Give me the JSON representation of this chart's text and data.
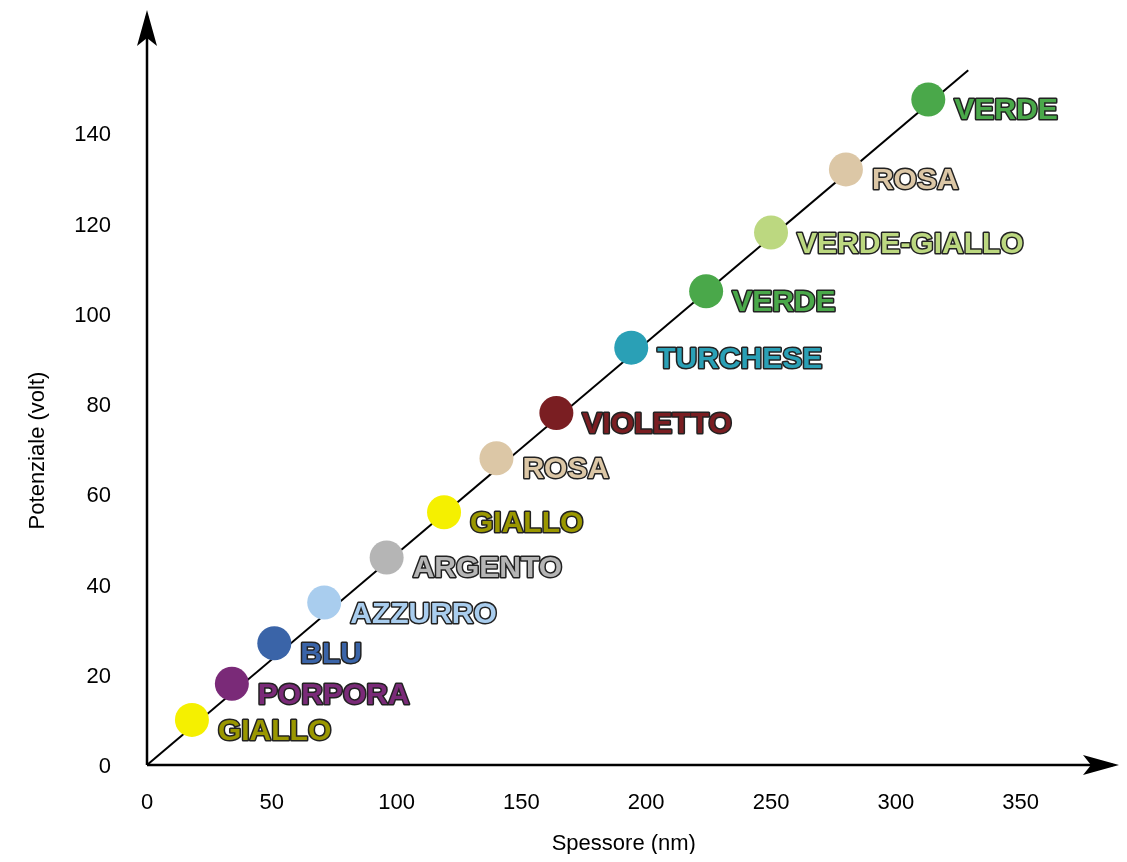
{
  "chart_data": {
    "type": "scatter",
    "xlabel": "Spessore (nm)",
    "ylabel": "Potenziale (volt)",
    "xlim": [
      0,
      387
    ],
    "xticks": [
      0,
      50,
      100,
      150,
      200,
      250,
      300,
      350
    ],
    "ylim": [
      0,
      166
    ],
    "yticks": [
      0,
      20,
      40,
      60,
      80,
      100,
      120,
      140
    ],
    "grid": false,
    "marker": "circle",
    "series": [
      {
        "type": "line",
        "color": "#000000",
        "x": [
          0,
          329
        ],
        "values": [
          0,
          154
        ],
        "marker": "none"
      },
      {
        "x": [
          18,
          34,
          51,
          71,
          96,
          119,
          140,
          164,
          194,
          224,
          250,
          280,
          313
        ],
        "values": [
          10,
          18,
          27,
          36,
          46,
          56,
          68,
          78,
          92.5,
          105,
          118,
          132,
          147.5
        ],
        "colors": [
          "#f5f000",
          "#7a2a78",
          "#3a64a8",
          "#a9cdee",
          "#b5b5b5",
          "#f5f000",
          "#dcc7a6",
          "#7a1e22",
          "#2aa0b6",
          "#4aa84a",
          "#bcd880",
          "#dcc7a6",
          "#4aa84a"
        ]
      }
    ],
    "annotations": [
      {
        "text": "GIALLO",
        "x": 18,
        "y": 10
      },
      {
        "text": "PORPORA",
        "x": 34,
        "y": 18
      },
      {
        "text": "BLU",
        "x": 51,
        "y": 27
      },
      {
        "text": "AZZURRO",
        "x": 71,
        "y": 36
      },
      {
        "text": "ARGENTO",
        "x": 96,
        "y": 46
      },
      {
        "text": "GIALLO",
        "x": 119,
        "y": 56
      },
      {
        "text": "ROSA",
        "x": 140,
        "y": 68
      },
      {
        "text": "VIOLETTO",
        "x": 164,
        "y": 78
      },
      {
        "text": "TURCHESE",
        "x": 194,
        "y": 92.5
      },
      {
        "text": "VERDE",
        "x": 224,
        "y": 105
      },
      {
        "text": "VERDE-GIALLO",
        "x": 250,
        "y": 118
      },
      {
        "text": "ROSA",
        "x": 280,
        "y": 132
      },
      {
        "text": "VERDE",
        "x": 313,
        "y": 147.5
      }
    ]
  }
}
